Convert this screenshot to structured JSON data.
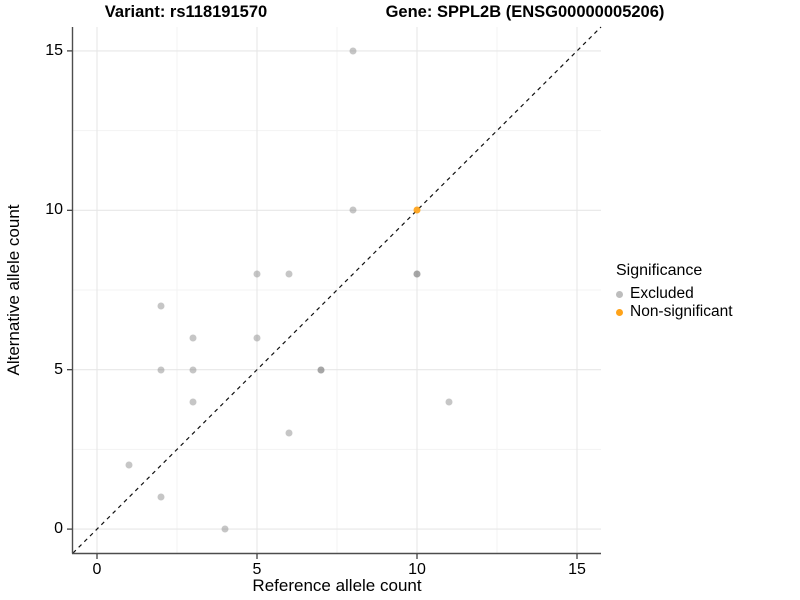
{
  "titles": {
    "left": "Variant: rs118191570",
    "right": "Gene: SPPL2B (ENSG00000005206)"
  },
  "chart_data": {
    "type": "scatter",
    "xlabel": "Reference allele count",
    "ylabel": "Alternative allele count",
    "xlim": [
      -0.75,
      15.75
    ],
    "ylim": [
      -0.75,
      15.75
    ],
    "x_ticks": [
      0,
      5,
      10,
      15
    ],
    "y_ticks": [
      0,
      5,
      10,
      15
    ],
    "x_minor_ticks": [
      2.5,
      7.5,
      12.5
    ],
    "y_minor_ticks": [
      2.5,
      7.5,
      12.5
    ],
    "grid": true,
    "colors": {
      "major_grid": "#e7e7e7",
      "minor_grid": "#f3f3f3",
      "axis_line": "#4d4d4d",
      "identity_line": "#111111",
      "excluded": "rgba(128,128,128,0.45)",
      "non_significant": "rgba(255,163,25,0.92)"
    },
    "identity_line": {
      "style": "dashed",
      "from": [
        -0.75,
        -0.75
      ],
      "to": [
        15.75,
        15.75
      ]
    },
    "legend": {
      "title": "Significance",
      "position": "right",
      "entries": [
        {
          "label": "Excluded",
          "color": "#bdbdbd"
        },
        {
          "label": "Non-significant",
          "color": "#ffa319"
        }
      ]
    },
    "series": [
      {
        "name": "Excluded",
        "points": [
          [
            8,
            15
          ],
          [
            8,
            10
          ],
          [
            5,
            8
          ],
          [
            6,
            8
          ],
          [
            10,
            8
          ],
          [
            10,
            8
          ],
          [
            2,
            7
          ],
          [
            3,
            6
          ],
          [
            5,
            6
          ],
          [
            2,
            5
          ],
          [
            3,
            5
          ],
          [
            7,
            5
          ],
          [
            7,
            5
          ],
          [
            3,
            4
          ],
          [
            11,
            4
          ],
          [
            6,
            3
          ],
          [
            1,
            2
          ],
          [
            2,
            1
          ],
          [
            4,
            0
          ]
        ]
      },
      {
        "name": "Non-significant",
        "points": [
          [
            10,
            10
          ]
        ]
      }
    ]
  }
}
